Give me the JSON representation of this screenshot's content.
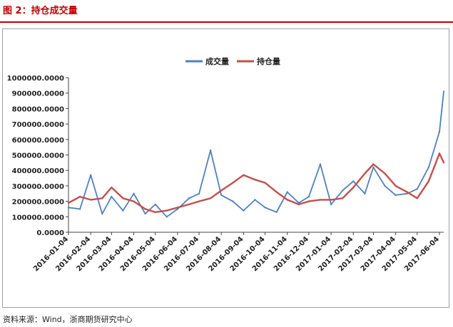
{
  "header": {
    "title": "图 2：持仓成交量"
  },
  "footer": {
    "source": "资料来源：Wind，浙商期货研究中心"
  },
  "colors": {
    "title_red": "#c00000",
    "volume_line": "#4f81bd",
    "open_interest_line": "#c0504d"
  },
  "chart_data": {
    "type": "line",
    "title": "",
    "xlabel": "",
    "ylabel": "",
    "ylim": [
      0,
      1000000
    ],
    "y_ticks": [
      "0.0000",
      "100000.0000",
      "200000.0000",
      "300000.0000",
      "400000.0000",
      "500000.0000",
      "600000.0000",
      "700000.0000",
      "800000.0000",
      "900000.0000",
      "1000000.0000"
    ],
    "x_ticks": [
      "2016-01-04",
      "2016-02-04",
      "2016-03-04",
      "2016-04-04",
      "2016-05-04",
      "2016-06-04",
      "2016-07-04",
      "2016-08-04",
      "2016-09-04",
      "2016-10-04",
      "2016-11-04",
      "2016-12-04",
      "2017-01-04",
      "2017-02-04",
      "2017-03-04",
      "2017-04-04",
      "2017-05-04",
      "2017-06-04"
    ],
    "grid": false,
    "legend_position": "top",
    "series": [
      {
        "name": "成交量",
        "color": "#4f81bd",
        "x": [
          "2016-01-04",
          "2016-01-20",
          "2016-02-04",
          "2016-02-20",
          "2016-03-04",
          "2016-03-20",
          "2016-04-04",
          "2016-04-20",
          "2016-05-04",
          "2016-05-20",
          "2016-06-04",
          "2016-06-20",
          "2016-07-04",
          "2016-07-20",
          "2016-08-04",
          "2016-08-20",
          "2016-09-04",
          "2016-09-20",
          "2016-10-04",
          "2016-10-20",
          "2016-11-04",
          "2016-11-20",
          "2016-12-04",
          "2016-12-20",
          "2017-01-04",
          "2017-01-20",
          "2017-02-04",
          "2017-02-20",
          "2017-03-04",
          "2017-03-20",
          "2017-04-04",
          "2017-04-20",
          "2017-05-04",
          "2017-05-20",
          "2017-06-04",
          "2017-06-10"
        ],
        "values": [
          160000,
          150000,
          370000,
          120000,
          230000,
          140000,
          250000,
          120000,
          180000,
          100000,
          150000,
          220000,
          250000,
          530000,
          240000,
          200000,
          140000,
          210000,
          160000,
          130000,
          260000,
          190000,
          230000,
          440000,
          180000,
          270000,
          330000,
          250000,
          420000,
          300000,
          240000,
          250000,
          280000,
          420000,
          650000,
          910000
        ]
      },
      {
        "name": "持仓量",
        "color": "#c0504d",
        "x": [
          "2016-01-04",
          "2016-01-20",
          "2016-02-04",
          "2016-02-20",
          "2016-03-04",
          "2016-03-20",
          "2016-04-04",
          "2016-04-20",
          "2016-05-04",
          "2016-05-20",
          "2016-06-04",
          "2016-06-20",
          "2016-07-04",
          "2016-07-20",
          "2016-08-04",
          "2016-08-20",
          "2016-09-04",
          "2016-09-20",
          "2016-10-04",
          "2016-10-20",
          "2016-11-04",
          "2016-11-20",
          "2016-12-04",
          "2016-12-20",
          "2017-01-04",
          "2017-01-20",
          "2017-02-04",
          "2017-02-20",
          "2017-03-04",
          "2017-03-20",
          "2017-04-04",
          "2017-04-20",
          "2017-05-04",
          "2017-05-20",
          "2017-06-04",
          "2017-06-10"
        ],
        "values": [
          190000,
          230000,
          210000,
          220000,
          290000,
          220000,
          200000,
          150000,
          130000,
          140000,
          160000,
          180000,
          200000,
          220000,
          270000,
          320000,
          370000,
          340000,
          320000,
          260000,
          210000,
          180000,
          200000,
          210000,
          210000,
          220000,
          290000,
          380000,
          440000,
          380000,
          300000,
          260000,
          220000,
          330000,
          510000,
          450000
        ]
      }
    ]
  }
}
